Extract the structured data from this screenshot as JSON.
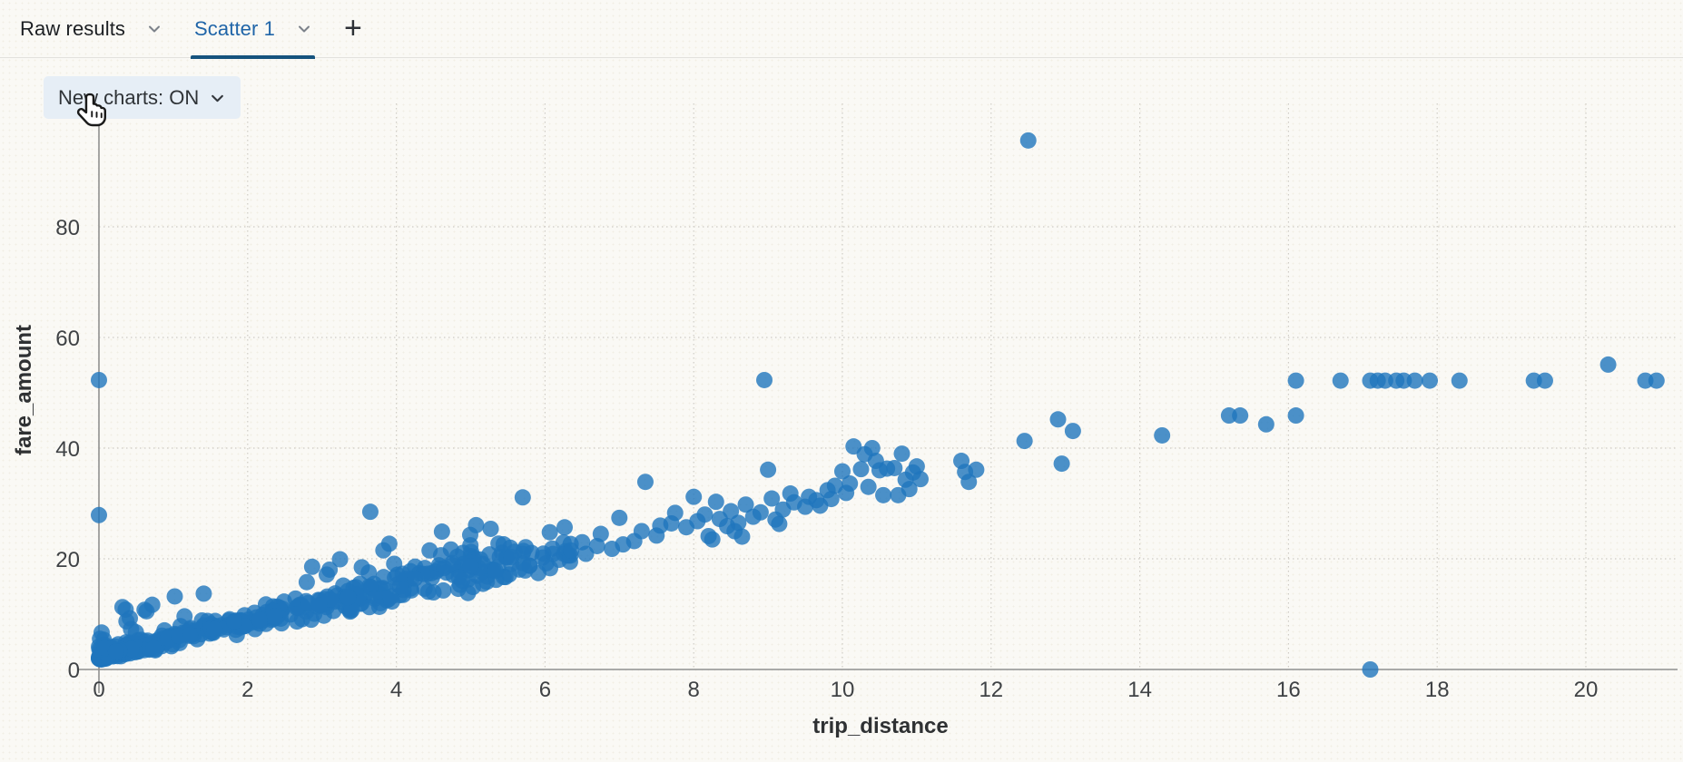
{
  "tabbar": {
    "tabs": [
      {
        "label": "Raw results",
        "active": false
      },
      {
        "label": "Scatter 1",
        "active": true
      }
    ],
    "add_tab_icon": "+"
  },
  "toolbar": {
    "new_charts_label": "New charts: ON"
  },
  "colors": {
    "active_tab_text": "#2065a8",
    "active_tab_underline": "#15537e",
    "marker_blue": "#1f76bd",
    "axis_line": "#909090",
    "gridline": "#cfccc5",
    "pill_background": "#e6eef6"
  },
  "chart_data": {
    "type": "scatter",
    "xlabel": "trip_distance",
    "ylabel": "fare_amount",
    "x_ticks": [
      0,
      2,
      4,
      6,
      8,
      10,
      12,
      14,
      16,
      18,
      20
    ],
    "y_ticks": [
      0,
      20,
      40,
      60,
      80
    ],
    "xlim": [
      0,
      21.2
    ],
    "ylim": [
      0,
      102
    ],
    "grid": "dotted",
    "legend": "none",
    "marker": {
      "color": "#1f76bd",
      "opacity": 0.8,
      "radius": 9
    },
    "outlier_points": [
      [
        12.5,
        95.6
      ],
      [
        17.1,
        0.0
      ],
      [
        0,
        52.3
      ],
      [
        0,
        27.9
      ],
      [
        8.95,
        52.3
      ],
      [
        20.3,
        55.1
      ],
      [
        3.65,
        28.5
      ],
      [
        5.7,
        31.1
      ]
    ],
    "flat_fare_band": {
      "y": 52.2,
      "x": [
        16.1,
        16.7,
        17.1,
        17.2,
        17.3,
        17.45,
        17.55,
        17.7,
        17.9,
        18.3,
        19.3,
        19.45,
        20.8,
        20.95
      ]
    },
    "mid_points": [
      [
        6.35,
        21.5
      ],
      [
        6.5,
        23.0
      ],
      [
        6.55,
        20.9
      ],
      [
        6.7,
        22.3
      ],
      [
        6.75,
        24.5
      ],
      [
        6.9,
        21.8
      ],
      [
        7.0,
        27.4
      ],
      [
        7.05,
        22.6
      ],
      [
        7.2,
        23.2
      ],
      [
        7.3,
        25.0
      ],
      [
        7.35,
        33.9
      ],
      [
        7.5,
        24.2
      ],
      [
        7.55,
        26.0
      ],
      [
        7.7,
        26.4
      ],
      [
        7.75,
        28.3
      ],
      [
        7.9,
        25.7
      ],
      [
        8.0,
        31.2
      ],
      [
        8.05,
        26.8
      ],
      [
        8.15,
        28.0
      ],
      [
        8.2,
        24.1
      ],
      [
        8.25,
        23.5
      ],
      [
        8.3,
        30.3
      ],
      [
        8.35,
        27.2
      ],
      [
        8.45,
        25.9
      ],
      [
        8.5,
        28.6
      ],
      [
        8.55,
        25.0
      ],
      [
        8.6,
        26.5
      ],
      [
        8.65,
        24.0
      ],
      [
        8.7,
        29.8
      ],
      [
        8.8,
        27.6
      ],
      [
        8.9,
        28.4
      ],
      [
        9.0,
        36.1
      ],
      [
        9.05,
        30.9
      ],
      [
        9.1,
        27.1
      ],
      [
        9.15,
        26.3
      ],
      [
        9.2,
        28.9
      ],
      [
        9.3,
        31.8
      ],
      [
        9.35,
        30.2
      ],
      [
        9.5,
        29.4
      ],
      [
        9.55,
        31.2
      ],
      [
        9.65,
        30.6
      ],
      [
        9.7,
        29.6
      ],
      [
        9.8,
        32.4
      ],
      [
        9.85,
        30.8
      ],
      [
        9.9,
        33.2
      ],
      [
        10.0,
        35.8
      ],
      [
        10.05,
        31.9
      ],
      [
        10.1,
        33.6
      ],
      [
        10.15,
        40.3
      ],
      [
        10.25,
        36.2
      ],
      [
        10.3,
        38.9
      ],
      [
        10.35,
        33.0
      ],
      [
        10.4,
        40.0
      ],
      [
        10.45,
        37.7
      ],
      [
        10.5,
        36.0
      ],
      [
        10.55,
        31.5
      ],
      [
        10.6,
        36.3
      ],
      [
        10.7,
        36.4
      ],
      [
        10.75,
        31.5
      ],
      [
        10.8,
        39.0
      ],
      [
        10.85,
        34.3
      ],
      [
        10.9,
        32.6
      ],
      [
        10.95,
        35.6
      ],
      [
        11.0,
        36.7
      ],
      [
        11.05,
        34.4
      ],
      [
        11.6,
        37.7
      ],
      [
        11.65,
        35.7
      ],
      [
        11.7,
        33.9
      ],
      [
        11.8,
        36.1
      ],
      [
        12.45,
        41.3
      ],
      [
        12.9,
        45.2
      ],
      [
        12.95,
        37.2
      ],
      [
        13.1,
        43.1
      ],
      [
        14.3,
        42.3
      ],
      [
        15.2,
        45.9
      ],
      [
        15.35,
        45.9
      ],
      [
        15.7,
        44.3
      ],
      [
        16.1,
        45.9
      ]
    ],
    "dense_cloud": {
      "comment": "dense linear wedge, fare ~ 2.5-3.65 * distance + 1.6-3.6",
      "count": 430,
      "x_max": 6.35,
      "x_pow": 1.55,
      "slope_min": 2.5,
      "slope_max": 3.65,
      "intercept_min": 1.6,
      "intercept_max": 3.6,
      "noise_base": 0.5,
      "noise_slope": 0.3,
      "stray_prob": 0.07,
      "stray_max": 6.0,
      "seed": 20240501
    },
    "origin_cluster": {
      "count": 28,
      "x_max": 0.28,
      "y_min": 1.9,
      "y_max": 4.6,
      "seed": 99
    }
  }
}
